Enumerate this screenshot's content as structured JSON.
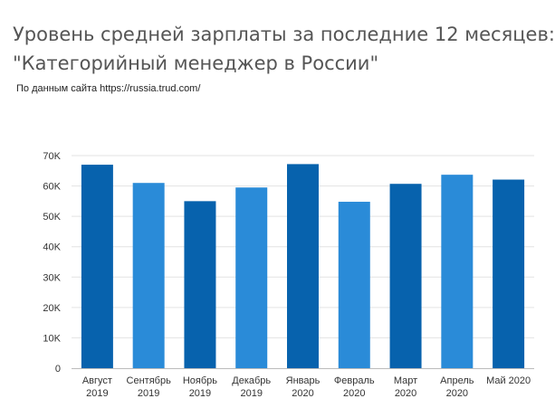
{
  "title_line1": "Уровень средней зарплаты за последние 12 месяцев:",
  "title_line2": "\"Категорийный менеджер в России\"",
  "source": "По данным сайта https://russia.trud.com/",
  "colors": {
    "dark_bar": "#0762ad",
    "light_bar": "#2a8bd8",
    "grid": "#e3e3e3",
    "axis": "#bbbbbb"
  },
  "chart_data": {
    "type": "bar",
    "title": "Уровень средней зарплаты за последние 12 месяцев: \"Категорийный менеджер в России\"",
    "xlabel": "",
    "ylabel": "",
    "ylim": [
      0,
      70000
    ],
    "yticks": [
      0,
      10000,
      20000,
      30000,
      40000,
      50000,
      60000,
      70000
    ],
    "ytick_labels": [
      "0",
      "10K",
      "20K",
      "30K",
      "40K",
      "50K",
      "60K",
      "70K"
    ],
    "grid": true,
    "categories": [
      [
        "Август",
        "2019"
      ],
      [
        "Сентябрь",
        "2019"
      ],
      [
        "Ноябрь",
        "2019"
      ],
      [
        "Декабрь",
        "2019"
      ],
      [
        "Январь",
        "2020"
      ],
      [
        "Февраль",
        "2020"
      ],
      [
        "Март",
        "2020"
      ],
      [
        "Апрель",
        "2020"
      ],
      [
        "Май 2020"
      ]
    ],
    "values": [
      67000,
      61000,
      55000,
      59500,
      67200,
      54800,
      60700,
      63700,
      62100
    ],
    "bar_shades": [
      "dark",
      "light",
      "dark",
      "light",
      "dark",
      "light",
      "dark",
      "light",
      "dark"
    ]
  }
}
